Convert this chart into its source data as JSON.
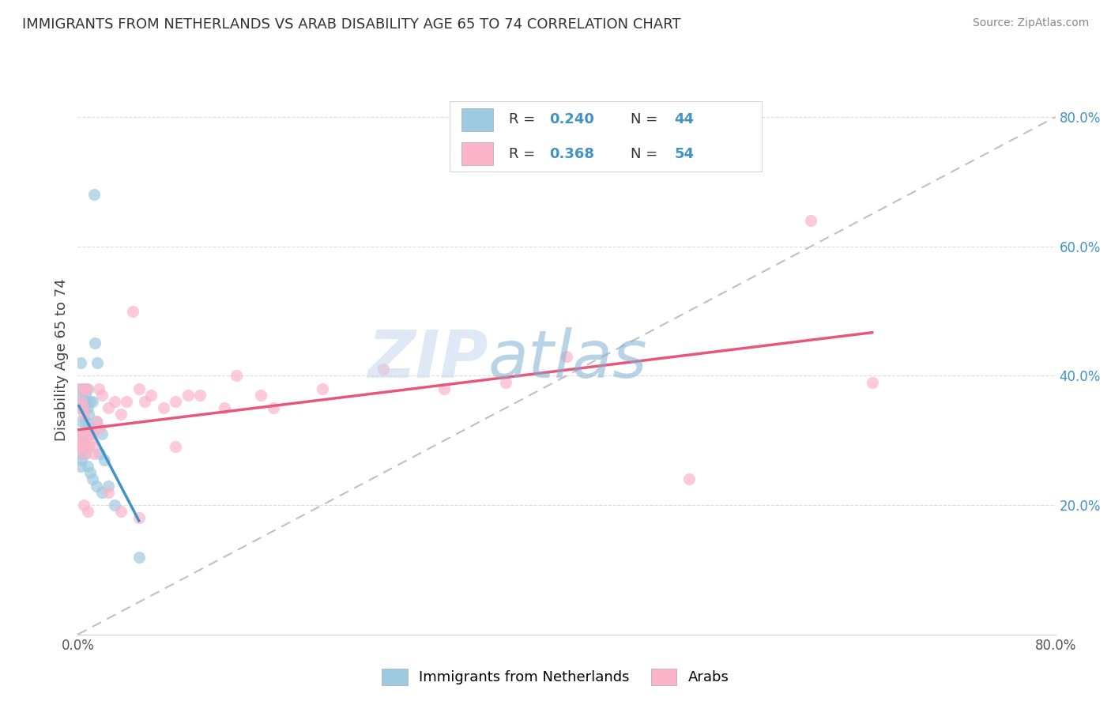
{
  "title": "IMMIGRANTS FROM NETHERLANDS VS ARAB DISABILITY AGE 65 TO 74 CORRELATION CHART",
  "source": "Source: ZipAtlas.com",
  "ylabel": "Disability Age 65 to 74",
  "xlim": [
    0.0,
    0.8
  ],
  "ylim": [
    0.0,
    0.85
  ],
  "color_blue": "#9ecae1",
  "color_blue_line": "#4292c6",
  "color_pink": "#fbb4c9",
  "color_pink_line": "#e8577a",
  "diagonal_color": "#c0c0c0",
  "watermark_zip": "#d0dff0",
  "watermark_atlas": "#7fafd0",
  "netherlands_x": [
    0.001,
    0.002,
    0.002,
    0.003,
    0.003,
    0.004,
    0.004,
    0.005,
    0.005,
    0.005,
    0.006,
    0.006,
    0.007,
    0.007,
    0.008,
    0.008,
    0.009,
    0.01,
    0.01,
    0.011,
    0.012,
    0.013,
    0.014,
    0.015,
    0.016,
    0.018,
    0.02,
    0.022,
    0.025,
    0.001,
    0.002,
    0.002,
    0.003,
    0.004,
    0.005,
    0.006,
    0.007,
    0.008,
    0.01,
    0.012,
    0.015,
    0.02,
    0.03,
    0.05
  ],
  "netherlands_y": [
    0.38,
    0.35,
    0.42,
    0.37,
    0.33,
    0.36,
    0.31,
    0.38,
    0.35,
    0.29,
    0.37,
    0.33,
    0.36,
    0.29,
    0.35,
    0.38,
    0.34,
    0.36,
    0.31,
    0.32,
    0.36,
    0.68,
    0.45,
    0.33,
    0.42,
    0.28,
    0.31,
    0.27,
    0.23,
    0.3,
    0.28,
    0.26,
    0.27,
    0.29,
    0.3,
    0.28,
    0.31,
    0.26,
    0.25,
    0.24,
    0.23,
    0.22,
    0.2,
    0.12
  ],
  "arab_x": [
    0.001,
    0.002,
    0.002,
    0.003,
    0.003,
    0.004,
    0.004,
    0.005,
    0.005,
    0.006,
    0.007,
    0.008,
    0.009,
    0.01,
    0.011,
    0.012,
    0.013,
    0.015,
    0.017,
    0.02,
    0.025,
    0.03,
    0.035,
    0.04,
    0.045,
    0.05,
    0.055,
    0.06,
    0.07,
    0.08,
    0.09,
    0.1,
    0.12,
    0.13,
    0.15,
    0.16,
    0.2,
    0.25,
    0.3,
    0.35,
    0.4,
    0.5,
    0.6,
    0.65,
    0.002,
    0.003,
    0.005,
    0.008,
    0.012,
    0.018,
    0.025,
    0.035,
    0.05,
    0.08
  ],
  "arab_y": [
    0.31,
    0.38,
    0.29,
    0.36,
    0.31,
    0.29,
    0.35,
    0.34,
    0.28,
    0.38,
    0.38,
    0.31,
    0.29,
    0.31,
    0.3,
    0.29,
    0.28,
    0.33,
    0.38,
    0.37,
    0.35,
    0.36,
    0.34,
    0.36,
    0.5,
    0.38,
    0.36,
    0.37,
    0.35,
    0.36,
    0.37,
    0.37,
    0.35,
    0.4,
    0.37,
    0.35,
    0.38,
    0.41,
    0.38,
    0.39,
    0.43,
    0.24,
    0.64,
    0.39,
    0.3,
    0.29,
    0.2,
    0.19,
    0.31,
    0.32,
    0.22,
    0.19,
    0.18,
    0.29
  ]
}
